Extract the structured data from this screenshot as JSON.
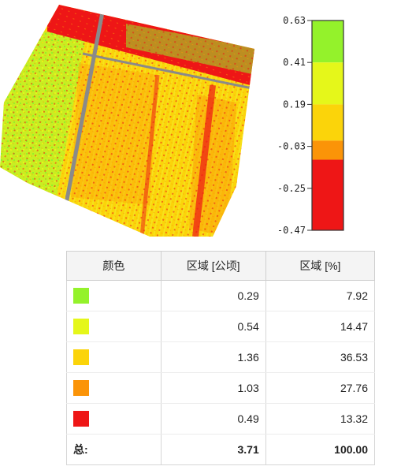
{
  "palette": {
    "green": "#94f22b",
    "yellow_green": "#e5f71a",
    "yellow": "#fbd40a",
    "orange": "#fb9408",
    "red": "#ee1616",
    "gray_road": "#8a8a8a"
  },
  "legend": {
    "ticks": [
      "0.63",
      "0.41",
      "0.19",
      "-0.03",
      "-0.25",
      "-0.47"
    ],
    "classes": [
      {
        "from": 0.41,
        "to": 0.63,
        "color": "#94f22b"
      },
      {
        "from": 0.19,
        "to": 0.41,
        "color": "#e5f71a"
      },
      {
        "from": 0.0,
        "to": 0.19,
        "color": "#fbd40a"
      },
      {
        "from": -0.1,
        "to": 0.0,
        "color": "#fb9408"
      },
      {
        "from": -0.47,
        "to": -0.1,
        "color": "#ee1616"
      }
    ]
  },
  "table": {
    "headers": [
      "颜色",
      "区域 [公顷]",
      "区域 [%]"
    ],
    "rows": [
      {
        "color": "#94f22b",
        "area_ha": "0.29",
        "area_pct": "7.92"
      },
      {
        "color": "#e5f71a",
        "area_ha": "0.54",
        "area_pct": "14.47"
      },
      {
        "color": "#fbd40a",
        "area_ha": "1.36",
        "area_pct": "36.53"
      },
      {
        "color": "#fb9408",
        "area_ha": "1.03",
        "area_pct": "27.76"
      },
      {
        "color": "#ee1616",
        "area_ha": "0.49",
        "area_pct": "13.32"
      }
    ],
    "total": {
      "label": "总:",
      "area_ha": "3.71",
      "area_pct": "100.00"
    }
  }
}
